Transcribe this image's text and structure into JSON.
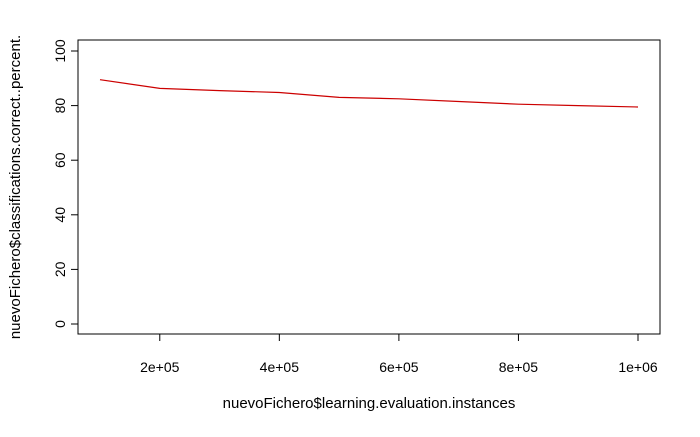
{
  "chart_data": {
    "type": "line",
    "title": "",
    "xlabel": "nuevoFichero$learning.evaluation.instances",
    "ylabel": "nuevoFichero$classifications.correct..percent.",
    "xlim": [
      100000,
      1000000
    ],
    "ylim": [
      0,
      100
    ],
    "x_ticks": [
      200000,
      400000,
      600000,
      800000,
      1000000
    ],
    "x_tick_labels": [
      "2e+05",
      "4e+05",
      "6e+05",
      "8e+05",
      "1e+06"
    ],
    "y_ticks": [
      0,
      20,
      40,
      60,
      80,
      100
    ],
    "y_tick_labels": [
      "0",
      "20",
      "40",
      "60",
      "80",
      "100"
    ],
    "grid": false,
    "series": [
      {
        "color": "#cc0000",
        "x": [
          100000,
          200000,
          300000,
          400000,
          500000,
          600000,
          700000,
          800000,
          900000,
          1000000
        ],
        "y": [
          89.5,
          86.3,
          85.5,
          84.8,
          83.0,
          82.5,
          81.5,
          80.5,
          80.0,
          79.5
        ]
      }
    ]
  }
}
